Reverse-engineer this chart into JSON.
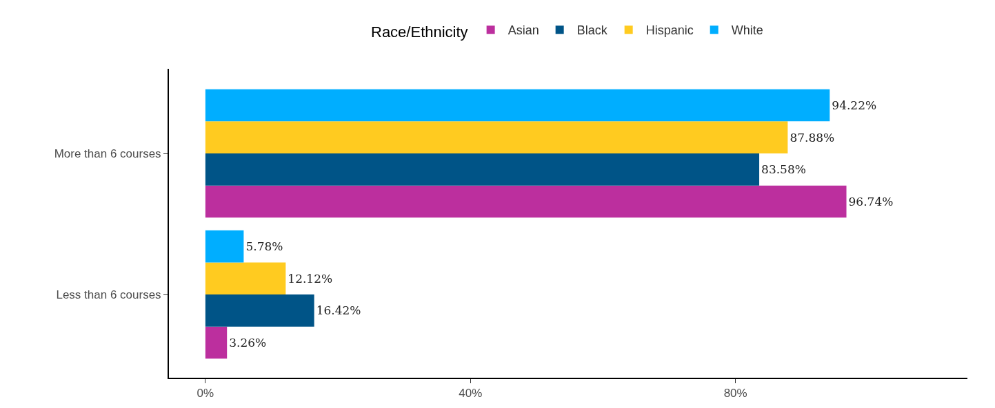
{
  "chart_data": {
    "type": "bar",
    "orientation": "horizontal",
    "legend_title": "Race/Ethnicity",
    "legend": "top",
    "categories": [
      "More than 6 courses",
      "Less than 6 courses"
    ],
    "series": [
      {
        "name": "Asian",
        "color": "#bc2f9e",
        "values": [
          96.74,
          3.26
        ],
        "value_labels": [
          "96.74%",
          "3.26%"
        ]
      },
      {
        "name": "Black",
        "color": "#005487",
        "values": [
          83.58,
          16.42
        ],
        "value_labels": [
          "83.58%",
          "16.42%"
        ]
      },
      {
        "name": "Hispanic",
        "color": "#ffcb20",
        "values": [
          87.88,
          12.12
        ],
        "value_labels": [
          "87.88%",
          "12.12%"
        ]
      },
      {
        "name": "White",
        "color": "#00aeff",
        "values": [
          94.22,
          5.78
        ],
        "value_labels": [
          "94.22%",
          "5.78%"
        ]
      }
    ],
    "xlim": [
      -5.5,
      115
    ],
    "xticks": [
      {
        "value": 0,
        "label": "0%"
      },
      {
        "value": 40,
        "label": "40%"
      },
      {
        "value": 80,
        "label": "80%"
      }
    ]
  }
}
